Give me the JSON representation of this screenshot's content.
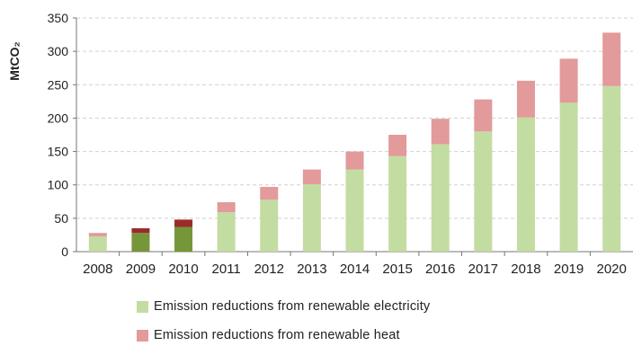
{
  "chart_data": {
    "type": "bar",
    "stacked": true,
    "ylabel": "MtCO₂",
    "xlabel": "",
    "ylim": [
      0,
      350
    ],
    "yticks": [
      0,
      50,
      100,
      150,
      200,
      250,
      300,
      350
    ],
    "grid": true,
    "categories": [
      "2008",
      "2009",
      "2010",
      "2011",
      "2012",
      "2013",
      "2014",
      "2015",
      "2016",
      "2017",
      "2018",
      "2019",
      "2020"
    ],
    "series": [
      {
        "name": "Emission reductions from renewable electricity",
        "values": [
          23,
          28,
          37,
          59,
          78,
          101,
          123,
          143,
          161,
          180,
          201,
          223,
          248
        ],
        "colors": [
          "#c3dca2",
          "#76963a",
          "#76963a",
          "#c3dca2",
          "#c3dca2",
          "#c3dca2",
          "#c3dca2",
          "#c3dca2",
          "#c3dca2",
          "#c3dca2",
          "#c3dca2",
          "#c3dca2",
          "#c3dca2"
        ]
      },
      {
        "name": "Emission reductions from renewable heat",
        "values": [
          5,
          7,
          11,
          15,
          19,
          22,
          27,
          32,
          38,
          48,
          55,
          66,
          80
        ],
        "colors": [
          "#e29a9a",
          "#9b2b2b",
          "#9b2b2b",
          "#e29a9a",
          "#e29a9a",
          "#e29a9a",
          "#e29a9a",
          "#e29a9a",
          "#e29a9a",
          "#e29a9a",
          "#e29a9a",
          "#e29a9a",
          "#e29a9a"
        ]
      }
    ],
    "legend_position": "bottom"
  },
  "legend_colors": {
    "electricity": "#c3dca2",
    "heat": "#e29a9a"
  }
}
